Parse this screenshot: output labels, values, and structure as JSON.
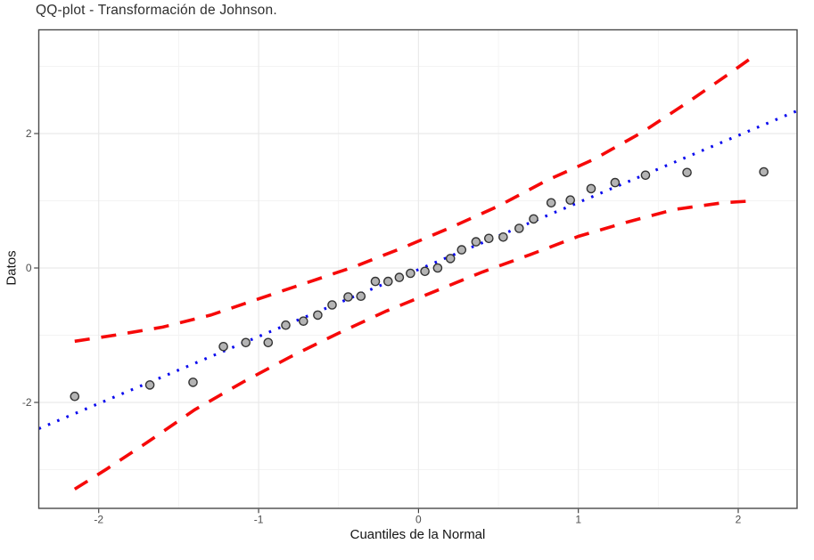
{
  "chart_data": {
    "type": "scatter",
    "title": "QQ-plot - Transformación de Johnson.",
    "xlabel": "Cuantiles de la Normal",
    "ylabel": "Datos",
    "x_range": [
      -2.375,
      2.368
    ],
    "y_range": [
      -3.576,
      3.543
    ],
    "x_ticks": [
      -2,
      -1,
      0,
      1,
      2
    ],
    "x_minor_ticks": [
      -1.5,
      -0.5,
      0.5,
      1.5
    ],
    "y_ticks": [
      -2,
      0,
      2
    ],
    "y_minor_ticks": [
      -3,
      -1,
      1,
      3
    ],
    "grid": "on",
    "legend": "none",
    "series": [
      {
        "name": "banda-confianza-superior",
        "kind": "line",
        "style": "dashed",
        "color": "#f60909",
        "width": 3.6,
        "dash": "17 13",
        "points": [
          [
            -2.15,
            -1.09
          ],
          [
            -1.9,
            -1.0
          ],
          [
            -1.6,
            -0.88
          ],
          [
            -1.3,
            -0.7
          ],
          [
            -1.0,
            -0.46
          ],
          [
            -0.7,
            -0.22
          ],
          [
            -0.4,
            0.02
          ],
          [
            -0.1,
            0.3
          ],
          [
            0.2,
            0.6
          ],
          [
            0.5,
            0.92
          ],
          [
            0.8,
            1.3
          ],
          [
            1.1,
            1.62
          ],
          [
            1.4,
            2.02
          ],
          [
            1.7,
            2.49
          ],
          [
            1.95,
            2.9
          ],
          [
            2.12,
            3.19
          ]
        ]
      },
      {
        "name": "banda-confianza-inferior",
        "kind": "line",
        "style": "dashed",
        "color": "#f60909",
        "width": 3.6,
        "dash": "17 13",
        "points": [
          [
            -2.15,
            -3.29
          ],
          [
            -1.95,
            -2.99
          ],
          [
            -1.7,
            -2.6
          ],
          [
            -1.4,
            -2.11
          ],
          [
            -1.1,
            -1.7
          ],
          [
            -0.8,
            -1.32
          ],
          [
            -0.5,
            -0.97
          ],
          [
            -0.2,
            -0.64
          ],
          [
            0.1,
            -0.35
          ],
          [
            0.4,
            -0.06
          ],
          [
            0.7,
            0.2
          ],
          [
            1.0,
            0.47
          ],
          [
            1.3,
            0.68
          ],
          [
            1.6,
            0.87
          ],
          [
            1.9,
            0.97
          ],
          [
            2.1,
            1.0
          ]
        ]
      },
      {
        "name": "linea-referencia",
        "kind": "line",
        "style": "dotted",
        "color": "#0a0aee",
        "width": 3.1,
        "dash": "2.6 8.6",
        "points": [
          [
            -2.375,
            -2.39
          ],
          [
            2.37,
            2.34
          ]
        ]
      },
      {
        "name": "datos",
        "kind": "points",
        "fill": "#b4b4b4",
        "stroke": "#333333",
        "radius": 4.6,
        "stroke_width": 1.4,
        "points": [
          [
            -2.15,
            -1.91
          ],
          [
            -1.68,
            -1.74
          ],
          [
            -1.41,
            -1.7
          ],
          [
            -1.22,
            -1.17
          ],
          [
            -1.08,
            -1.11
          ],
          [
            -0.94,
            -1.11
          ],
          [
            -0.83,
            -0.85
          ],
          [
            -0.72,
            -0.79
          ],
          [
            -0.63,
            -0.7
          ],
          [
            -0.54,
            -0.55
          ],
          [
            -0.44,
            -0.43
          ],
          [
            -0.36,
            -0.42
          ],
          [
            -0.27,
            -0.2
          ],
          [
            -0.19,
            -0.2
          ],
          [
            -0.12,
            -0.14
          ],
          [
            -0.05,
            -0.08
          ],
          [
            0.04,
            -0.05
          ],
          [
            0.12,
            0.0
          ],
          [
            0.2,
            0.14
          ],
          [
            0.27,
            0.27
          ],
          [
            0.36,
            0.39
          ],
          [
            0.44,
            0.44
          ],
          [
            0.53,
            0.46
          ],
          [
            0.63,
            0.59
          ],
          [
            0.72,
            0.73
          ],
          [
            0.83,
            0.97
          ],
          [
            0.95,
            1.01
          ],
          [
            1.08,
            1.18
          ],
          [
            1.23,
            1.27
          ],
          [
            1.42,
            1.38
          ],
          [
            1.68,
            1.42
          ],
          [
            2.16,
            1.43
          ]
        ]
      }
    ],
    "colors": {
      "grid_major": "#e9e9e9",
      "grid_minor": "#f3f3f3",
      "panel_border": "#4a4a4a",
      "tick_mark": "#333333",
      "tick_text": "#4d4d4d",
      "title_text": "#2e2e2e",
      "axis_title_text": "#141414",
      "background": "#ffffff"
    }
  }
}
